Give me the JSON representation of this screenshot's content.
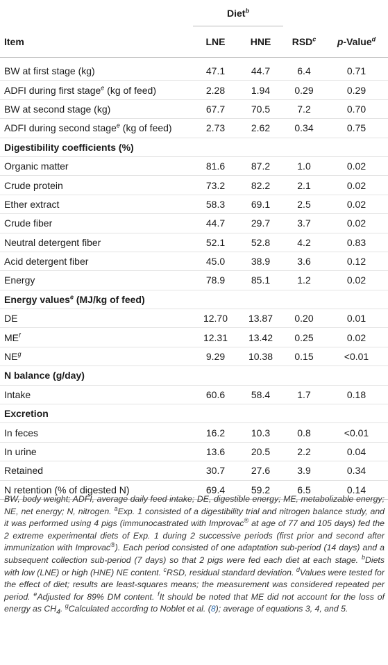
{
  "header": {
    "diet_label": "Diet",
    "diet_sup": "b",
    "item_label": "Item",
    "lne_label": "LNE",
    "hne_label": "HNE",
    "rsd_label": "RSD",
    "rsd_sup": "c",
    "p_label": "p",
    "p_suffix": "-Value",
    "p_sup": "d"
  },
  "rows": [
    {
      "item": "BW at first stage (kg)",
      "lne": "47.1",
      "hne": "44.7",
      "rsd": "6.4",
      "p": "0.71"
    },
    {
      "item": "ADFI during first stage",
      "sup": "e",
      "item_suffix": " (kg of feed)",
      "lne": "2.28",
      "hne": "1.94",
      "rsd": "0.29",
      "p": "0.29"
    },
    {
      "item": "BW at second stage (kg)",
      "lne": "67.7",
      "hne": "70.5",
      "rsd": "7.2",
      "p": "0.70"
    },
    {
      "item": "ADFI during second stage",
      "sup": "e",
      "item_suffix": " (kg of feed)",
      "lne": "2.73",
      "hne": "2.62",
      "rsd": "0.34",
      "p": "0.75"
    },
    {
      "section": true,
      "item": "Digestibility coefficients (%)"
    },
    {
      "item": "Organic matter",
      "lne": "81.6",
      "hne": "87.2",
      "rsd": "1.0",
      "p": "0.02"
    },
    {
      "item": "Crude protein",
      "lne": "73.2",
      "hne": "82.2",
      "rsd": "2.1",
      "p": "0.02"
    },
    {
      "item": "Ether extract",
      "lne": "58.3",
      "hne": "69.1",
      "rsd": "2.5",
      "p": "0.02"
    },
    {
      "item": "Crude fiber",
      "lne": "44.7",
      "hne": "29.7",
      "rsd": "3.7",
      "p": "0.02"
    },
    {
      "item": "Neutral detergent fiber",
      "lne": "52.1",
      "hne": "52.8",
      "rsd": "4.2",
      "p": "0.83"
    },
    {
      "item": "Acid detergent fiber",
      "lne": "45.0",
      "hne": "38.9",
      "rsd": "3.6",
      "p": "0.12"
    },
    {
      "item": "Energy",
      "lne": "78.9",
      "hne": "85.1",
      "rsd": "1.2",
      "p": "0.02"
    },
    {
      "section": true,
      "item": "Energy values",
      "sup": "e",
      "item_suffix": " (MJ/kg of feed)"
    },
    {
      "item": "DE",
      "lne": "12.70",
      "hne": "13.87",
      "rsd": "0.20",
      "p": "0.01"
    },
    {
      "item": "ME",
      "sup": "f",
      "lne": "12.31",
      "hne": "13.42",
      "rsd": "0.25",
      "p": "0.02"
    },
    {
      "item": "NE",
      "sup": "g",
      "lne": "9.29",
      "hne": "10.38",
      "rsd": "0.15",
      "p": "<0.01"
    },
    {
      "section": true,
      "item": "N balance (g/day)"
    },
    {
      "item": "Intake",
      "lne": "60.6",
      "hne": "58.4",
      "rsd": "1.7",
      "p": "0.18"
    },
    {
      "section": true,
      "item": "Excretion"
    },
    {
      "item": "In feces",
      "lne": "16.2",
      "hne": "10.3",
      "rsd": "0.8",
      "p": "<0.01"
    },
    {
      "item": "In urine",
      "lne": "13.6",
      "hne": "20.5",
      "rsd": "2.2",
      "p": "0.04"
    },
    {
      "item": "Retained",
      "lne": "30.7",
      "hne": "27.6",
      "rsd": "3.9",
      "p": "0.34"
    },
    {
      "item": "N retention (% of digested N)",
      "lne": "69.4",
      "hne": "59.2",
      "rsd": "6.5",
      "p": "0.14"
    }
  ],
  "footnotes": {
    "abbrev": "BW, body weight; ADFI, average daily feed intake; DE, digestible energy; ME, metabolizable energy; NE, net energy; N, nitrogen. ",
    "a_mark": "a",
    "a_text": "Exp. 1 consisted of a digestibility trial and nitrogen balance study, and it was performed using 4 pigs (immunocastrated with Improvac",
    "reg": "®",
    "a_text2": " at age of 77 and 105 days) fed the 2 extreme experimental diets of Exp. 1 during 2 successive periods (first prior and second after immunization with Improvac",
    "a_text3": "). Each period consisted of one adaptation sub-period (14 days) and a subsequent collection sub-period (7 days) so that 2 pigs were fed each diet at each stage. ",
    "b_mark": "b",
    "b_text": "Diets with low (LNE) or high (HNE) NE content. ",
    "c_mark": "c",
    "c_text": "RSD, residual standard deviation. ",
    "d_mark": "d",
    "d_text": "Values were tested for the effect of diet; results are least-squares means; the measurement was considered repeated per period. ",
    "e_mark": "e",
    "e_text": "Adjusted for 89% DM content. ",
    "f_mark": "f",
    "f_text": "It should be noted that ME did not account for the loss of energy as CH",
    "f_sub": "4",
    "f_end": ". ",
    "g_mark": "g",
    "g_text": "Calculated according to Noblet et al. (",
    "g_ref": "8",
    "g_end": "); average of equations 3, 4, and 5."
  }
}
